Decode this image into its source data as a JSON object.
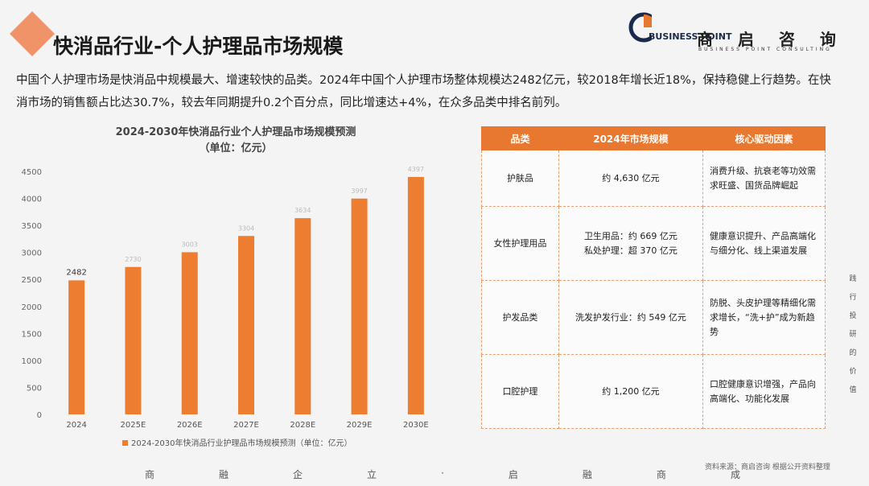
{
  "header": {
    "title": "快消品行业-个人护理品市场规模",
    "logo_cn": "商 启 咨 询",
    "logo_en": "BUSINESS POINT",
    "logo_sub": "BUSINESS POINT CONSULTING"
  },
  "intro": "中国个人护理市场是快消品中规模最大、增速较快的品类。2024年中国个人护理市场整体规模达2482亿元，较2018年增长近18%，保持稳健上行趋势。在快消市场的销售额占比达30.7%，较去年同期提升0.2个百分点，同比增速达+4%，在众多品类中排名前列。",
  "chart_data": {
    "type": "bar",
    "title": "2024-2030年快消品行业个人护理品市场规模预测",
    "subtitle": "（单位：亿元）",
    "categories": [
      "2024",
      "2025E",
      "2026E",
      "2027E",
      "2028E",
      "2029E",
      "2030E"
    ],
    "series": [
      {
        "name": "2024-2030年快消品行业护理品市场规模预测（单位：亿元）",
        "color": "#ed7d31",
        "values": [
          2482,
          2730,
          3003,
          3304,
          3634,
          3997,
          4397
        ]
      }
    ],
    "ylim": [
      0,
      4500
    ],
    "yticks": [
      0,
      500,
      1000,
      1500,
      2000,
      2500,
      3000,
      3500,
      4000,
      4500
    ],
    "grid": false
  },
  "table": {
    "headers": [
      "品类",
      "2024年市场规模",
      "核心驱动因素"
    ],
    "rows": [
      [
        "护肤品",
        [
          "约 4,630 亿元"
        ],
        "消费升级、抗衰老等功效需求旺盛、国货品牌崛起"
      ],
      [
        "女性护理用品",
        [
          "卫生用品：约 669 亿元",
          "私处护理：超 370 亿元"
        ],
        "健康意识提升、产品高端化与细分化、线上渠道发展"
      ],
      [
        "护发品类",
        [
          "洗发护发行业：约 549 亿元"
        ],
        "防脱、头皮护理等精细化需求增长，“洗+护”成为新趋势"
      ],
      [
        "口腔护理",
        [
          "约 1,200 亿元"
        ],
        "口腔健康意识增强，产品向高端化、功能化发展"
      ]
    ]
  },
  "footer": {
    "source": "资料来源：商启咨询 根据公开资料整理",
    "motto": [
      "商",
      "融",
      "企",
      "立",
      "·",
      "启",
      "融",
      "商",
      "成"
    ],
    "side": "践行投研的价值"
  }
}
